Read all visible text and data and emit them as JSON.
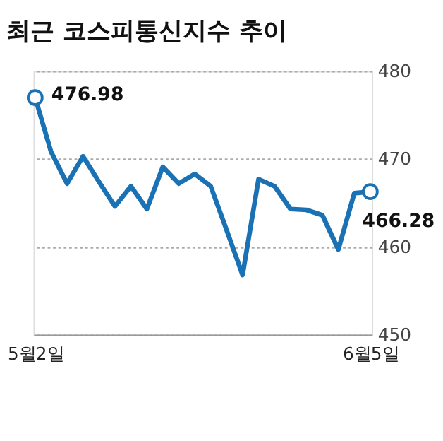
{
  "chart_data": {
    "type": "line",
    "title": "최근 코스피통신지수 추이",
    "categories": [
      "5월2일",
      null,
      null,
      null,
      null,
      null,
      null,
      null,
      null,
      null,
      null,
      null,
      null,
      null,
      null,
      null,
      null,
      null,
      null,
      null,
      null,
      "6월5일"
    ],
    "series": [
      {
        "color": "#1a72b5",
        "values": [
          476.98,
          470.8,
          467.2,
          470.3,
          467.4,
          464.6,
          466.9,
          464.3,
          469.1,
          467.2,
          468.3,
          466.9,
          461.9,
          456.8,
          467.7,
          466.9,
          464.3,
          464.2,
          463.6,
          459.7,
          466.1,
          466.28
        ]
      }
    ],
    "ylim": [
      450,
      480
    ],
    "yticks": [
      450,
      460,
      470,
      480
    ],
    "grid": "y",
    "marker": "none",
    "line_style": "solid",
    "annotations": [
      {
        "text": "476.98",
        "x": "5월2일",
        "y": 476.98
      },
      {
        "text": "466.28",
        "x": "6월5일",
        "y": 466.28
      }
    ]
  }
}
